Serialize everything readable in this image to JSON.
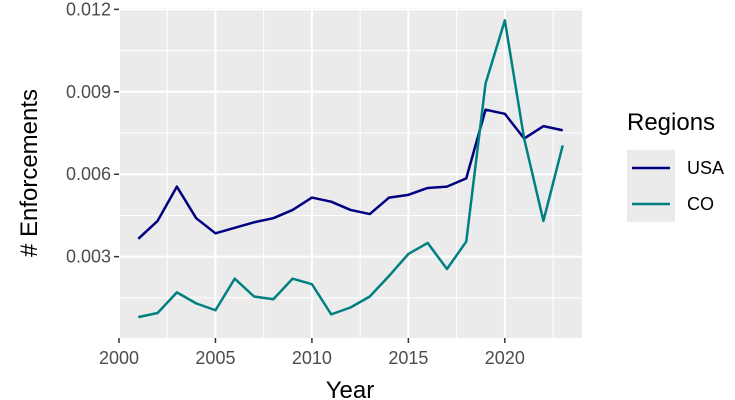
{
  "chart_data": {
    "type": "line",
    "title": "",
    "xlabel": "Year",
    "ylabel": "# Enforcements",
    "xlim": [
      2000,
      2024
    ],
    "ylim": [
      4e-05,
      0.01205
    ],
    "x_ticks": [
      2000,
      2005,
      2010,
      2015,
      2020
    ],
    "x_tick_labels": [
      "2000",
      "2005",
      "2010",
      "2015",
      "2020"
    ],
    "y_ticks": [
      0.003,
      0.006,
      0.009,
      0.012
    ],
    "y_tick_labels": [
      "0.003",
      "0.006",
      "0.009",
      "0.012"
    ],
    "grid": true,
    "legend": {
      "title": "Regions",
      "position": "right"
    },
    "x": [
      2001,
      2002,
      2003,
      2004,
      2005,
      2006,
      2007,
      2008,
      2009,
      2010,
      2011,
      2012,
      2013,
      2014,
      2015,
      2016,
      2017,
      2018,
      2019,
      2020,
      2021,
      2022,
      2023
    ],
    "series": [
      {
        "name": "USA",
        "color": "#000080",
        "values": [
          0.00365,
          0.0043,
          0.00555,
          0.0044,
          0.00385,
          0.00405,
          0.00425,
          0.0044,
          0.0047,
          0.00515,
          0.005,
          0.0047,
          0.00455,
          0.00515,
          0.00525,
          0.0055,
          0.00555,
          0.00585,
          0.00835,
          0.0082,
          0.0073,
          0.00775,
          0.0076
        ]
      },
      {
        "name": "CO",
        "color": "#008080",
        "values": [
          0.0008,
          0.00095,
          0.0017,
          0.0013,
          0.00105,
          0.0022,
          0.00155,
          0.00145,
          0.0022,
          0.002,
          0.0009,
          0.00115,
          0.00155,
          0.0023,
          0.0031,
          0.0035,
          0.00255,
          0.00355,
          0.0093,
          0.0116,
          0.0073,
          0.0043,
          0.00705
        ]
      }
    ]
  }
}
